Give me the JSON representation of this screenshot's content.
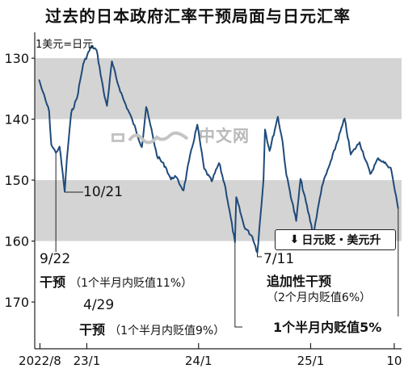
{
  "title": "过去的日本政府汇率干预局面与日元汇率",
  "chart_data": {
    "type": "line",
    "unit_label": "1美元=日元",
    "ylim": [
      170,
      127
    ],
    "y_ticks": [
      130,
      140,
      150,
      160,
      170
    ],
    "x_range": [
      "2022-07-15",
      "2025-10-25"
    ],
    "x_ticks": [
      {
        "label": "2022/8",
        "date": "2022-08-01"
      },
      {
        "label": "23/1",
        "date": "2023-01-01"
      },
      {
        "label": "24/1",
        "date": "2024-01-01"
      },
      {
        "label": "25/1",
        "date": "2025-01-01"
      },
      {
        "label": "10",
        "date": "2025-10-01"
      }
    ],
    "bands": [
      [
        130,
        140
      ],
      [
        150,
        160
      ]
    ],
    "series": [
      {
        "x": [
          "2022-07-29",
          "2022-08-10",
          "2022-08-31",
          "2022-09-07",
          "2022-09-22",
          "2022-10-04",
          "2022-10-21",
          "2022-10-28",
          "2022-11-11",
          "2022-11-30",
          "2022-12-20",
          "2023-01-16",
          "2023-02-02",
          "2023-02-28",
          "2023-03-08",
          "2023-03-24",
          "2023-04-10",
          "2023-05-01",
          "2023-05-30",
          "2023-06-30",
          "2023-07-14",
          "2023-07-28",
          "2023-08-18",
          "2023-09-15",
          "2023-10-03",
          "2023-10-16",
          "2023-11-13",
          "2023-12-01",
          "2023-12-28",
          "2024-01-19",
          "2024-02-13",
          "2024-03-08",
          "2024-03-29",
          "2024-04-29",
          "2024-05-03",
          "2024-05-29",
          "2024-06-25",
          "2024-07-11",
          "2024-07-31",
          "2024-08-05",
          "2024-08-20",
          "2024-09-16",
          "2024-10-01",
          "2024-10-14",
          "2024-11-15",
          "2024-11-29",
          "2025-01-10",
          "2025-02-07",
          "2025-03-11",
          "2025-04-22",
          "2025-05-12",
          "2025-06-10",
          "2025-07-15",
          "2025-08-10",
          "2025-09-05",
          "2025-09-20",
          "2025-10-14"
        ],
        "y": [
          133.5,
          135.5,
          138.7,
          144.2,
          145.5,
          144.5,
          151.9,
          146.5,
          139.0,
          136.5,
          131.0,
          128.0,
          128.7,
          136.3,
          137.8,
          130.5,
          133.8,
          136.8,
          140.2,
          144.6,
          138.0,
          141.0,
          146.0,
          147.8,
          149.9,
          149.3,
          151.7,
          146.8,
          140.9,
          148.1,
          150.2,
          147.2,
          151.3,
          160.2,
          152.8,
          157.6,
          159.3,
          161.9,
          150.0,
          141.7,
          145.2,
          139.6,
          143.6,
          149.2,
          156.7,
          149.8,
          158.9,
          151.0,
          146.5,
          139.9,
          145.8,
          143.8,
          149.0,
          146.4,
          147.4,
          148.0,
          154.7
        ]
      }
    ],
    "annotations": {
      "a_9_22": {
        "date": "9/22",
        "label": "干预",
        "note": "（1个半月内贬值11%）"
      },
      "a_10_21": {
        "date": "10/21"
      },
      "a_4_29": {
        "date": "4/29",
        "label": "干预",
        "note": "（1个半月内贬值9%）"
      },
      "a_7_11": {
        "date": "7/11",
        "label": "追加性干预",
        "note": "（2个月内贬值6%）"
      },
      "latest": {
        "label": "1个半月内贬值5%"
      },
      "direction": {
        "arrow": "⬇",
        "text": "日元贬・美元升"
      }
    }
  },
  "watermark": {
    "text": "中文网"
  }
}
